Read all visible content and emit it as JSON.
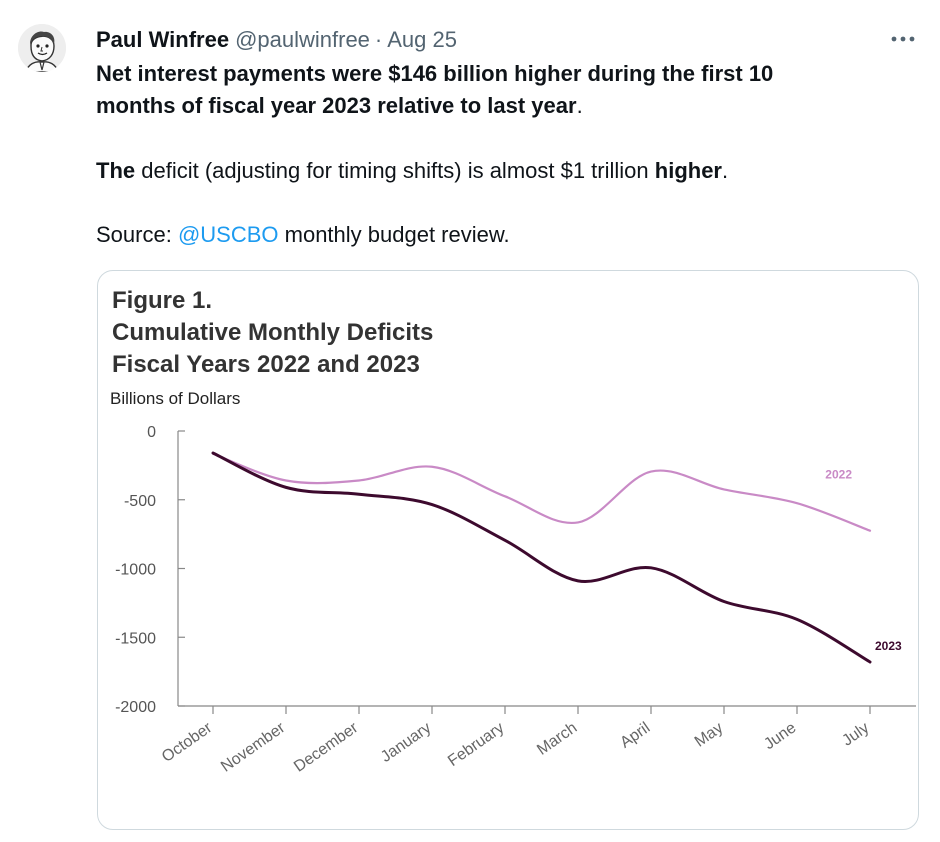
{
  "tweet": {
    "author_name": "Paul Winfree",
    "handle": "@paulwinfree",
    "separator": "·",
    "date": "Aug 25",
    "more_label": "More",
    "lines": {
      "l1": "Net interest payments were $146 billion higher during the first 10",
      "l2": "months of fiscal year 2023 relative to last year",
      "l2_period": ".",
      "l3_the": "The",
      "l3_mid": " deficit (adjusting for timing shifts) is almost $1 trillion ",
      "l3_higher": "higher",
      "l3_period": ".",
      "l4_prefix": "Source: ",
      "l4_link": "@USCBO",
      "l4_suffix": " monthly budget review."
    }
  },
  "figure": {
    "title_line1": "Figure 1.",
    "title_line2": "Cumulative Monthly Deficits",
    "title_line3": "Fiscal Years 2022 and 2023",
    "unit_label": "Billions of Dollars"
  },
  "chart_data": {
    "type": "line",
    "title": "Cumulative Monthly Deficits Fiscal Years 2022 and 2023",
    "ylabel": "Billions of Dollars",
    "xlabel": "",
    "ylim": [
      -2000,
      0
    ],
    "yticks": [
      0,
      -500,
      -1000,
      -1500,
      -2000
    ],
    "ytick_labels": [
      "0",
      "-500",
      "-1000",
      "-1500",
      "-2000"
    ],
    "categories": [
      "October",
      "November",
      "December",
      "January",
      "February",
      "March",
      "April",
      "May",
      "June",
      "July"
    ],
    "series": [
      {
        "name": "2022",
        "color": "#c98ac6",
        "values": [
          -165,
          -360,
          -360,
          -260,
          -475,
          -665,
          -295,
          -425,
          -525,
          -725
        ]
      },
      {
        "name": "2023",
        "color": "#3d0a2e",
        "values": [
          -160,
          -410,
          -460,
          -535,
          -795,
          -1090,
          -995,
          -1240,
          -1370,
          -1680
        ]
      }
    ],
    "grid": false,
    "legend": "inline labels at end of lines"
  }
}
